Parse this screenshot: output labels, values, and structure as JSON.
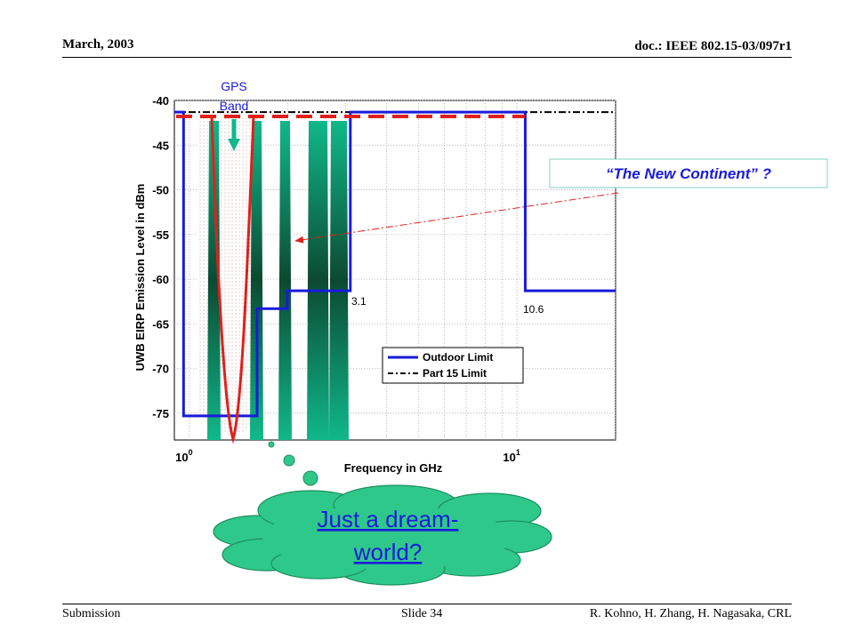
{
  "header": {
    "date": "March, 2003",
    "doc_id": "doc.: IEEE 802.15-03/097r1"
  },
  "footer": {
    "submission": "Submission",
    "slide": "Slide 34",
    "authors": "R. Kohno, H. Zhang, H. Nagasaka, CRL"
  },
  "annotations": {
    "gps_line1": "GPS",
    "gps_line2": "Band",
    "new_continent": "“The New Continent” ?",
    "dream_line1": "Just a dream-",
    "dream_line2": "world?",
    "marker_low": "3.1",
    "marker_high": "10.6"
  },
  "colors": {
    "outdoor": "#1a1adb",
    "part15": "#000000",
    "gps_curve": "#e0201b",
    "red_dashed": "#e0201b",
    "bands": "#10b88a",
    "bands_dark": "#0c4a32",
    "cloud": "#2ec98a",
    "dream_text": "#1a1adb"
  },
  "chart_data": {
    "type": "line",
    "xlabel": "Frequency in GHz",
    "ylabel": "UWB EIRP Emission Level in dBm",
    "x_scale": "log",
    "xlim": [
      0.9,
      20
    ],
    "ylim": [
      -78,
      -40
    ],
    "y_ticks": [
      "-40",
      "-45",
      "-50",
      "-55",
      "-60",
      "-65",
      "-70",
      "-75"
    ],
    "y_tick_values": [
      -40,
      -45,
      -50,
      -55,
      -60,
      -65,
      -70,
      -75
    ],
    "x_tick_labels": [
      {
        "base": "10",
        "exp": "0",
        "value": 1
      },
      {
        "base": "10",
        "exp": "1",
        "value": 10
      }
    ],
    "grid": true,
    "legend_position": "bottom-right",
    "series": [
      {
        "name": "Outdoor Limit",
        "style": "solid",
        "x": [
          0.9,
          0.96,
          0.96,
          1.61,
          1.61,
          1.99,
          1.99,
          2.1,
          2.1,
          3.1,
          3.1,
          10.6,
          10.6,
          20
        ],
        "y": [
          -41.3,
          -41.3,
          -75.3,
          -75.3,
          -63.3,
          -63.3,
          -61.3,
          -61.3,
          -61.3,
          -61.3,
          -41.3,
          -41.3,
          -61.3,
          -61.3
        ]
      },
      {
        "name": "Part 15 Limit",
        "style": "dash-dot",
        "x": [
          0.9,
          20
        ],
        "y": [
          -41.3,
          -41.3
        ]
      }
    ]
  }
}
